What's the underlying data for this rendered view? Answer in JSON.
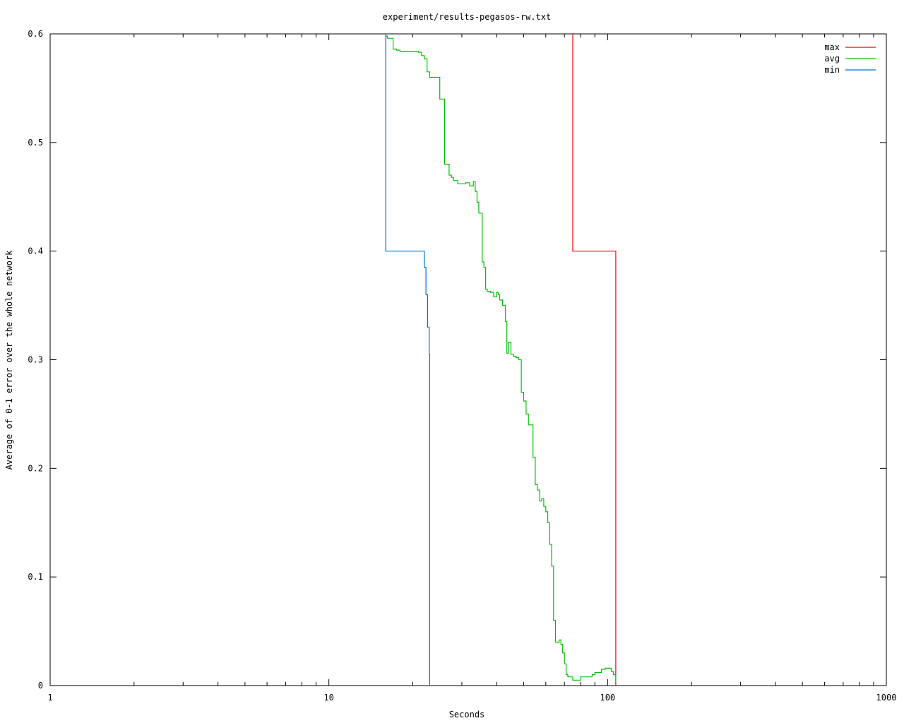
{
  "chart_data": {
    "type": "line",
    "title": "experiment/results-pegasos-rw.txt",
    "xlabel": "Seconds",
    "ylabel": "Average of 0-1 error over the whole network",
    "xscale": "log",
    "xlim": [
      1,
      1000
    ],
    "ylim": [
      0,
      0.6
    ],
    "xticks": [
      1,
      10,
      100,
      1000
    ],
    "xtick_labels": [
      "1",
      "10",
      "100",
      "1000"
    ],
    "yticks": [
      0,
      0.1,
      0.2,
      0.3,
      0.4,
      0.5,
      0.6
    ],
    "ytick_labels": [
      "0",
      "0.1",
      "0.2",
      "0.3",
      "0.4",
      "0.5",
      "0.6"
    ],
    "grid": false,
    "legend_position": "top-right",
    "series": [
      {
        "name": "max",
        "color": "#ff0000",
        "x": [
          75,
          75,
          107,
          107
        ],
        "y": [
          0.6,
          0.4,
          0.4,
          0.0
        ]
      },
      {
        "name": "avg",
        "color": "#00c000",
        "x": [
          16,
          16.2,
          17,
          17.5,
          18,
          19,
          21,
          21.5,
          22,
          22.5,
          23,
          24,
          25,
          26,
          26.5,
          27,
          27.5,
          28,
          29,
          30,
          31,
          32,
          33,
          33.5,
          34,
          34.5,
          35,
          35.5,
          36,
          36.5,
          37,
          38,
          39,
          40,
          40.5,
          41,
          42,
          43,
          43.5,
          44,
          45,
          46,
          47,
          48,
          49,
          50,
          51,
          52,
          53,
          54,
          55,
          56,
          57,
          58,
          59,
          60,
          61,
          62,
          63,
          64,
          65,
          66,
          67,
          68,
          69,
          70,
          71,
          72,
          73,
          75,
          78,
          80,
          82,
          85,
          88,
          90,
          95,
          98,
          100,
          103,
          105,
          107
        ],
        "y": [
          0.598,
          0.596,
          0.586,
          0.585,
          0.584,
          0.584,
          0.583,
          0.58,
          0.577,
          0.565,
          0.56,
          0.56,
          0.54,
          0.48,
          0.48,
          0.47,
          0.468,
          0.465,
          0.462,
          0.462,
          0.463,
          0.46,
          0.464,
          0.455,
          0.445,
          0.435,
          0.435,
          0.39,
          0.385,
          0.365,
          0.363,
          0.362,
          0.358,
          0.362,
          0.36,
          0.355,
          0.35,
          0.335,
          0.306,
          0.316,
          0.305,
          0.303,
          0.302,
          0.3,
          0.27,
          0.262,
          0.25,
          0.24,
          0.24,
          0.21,
          0.185,
          0.18,
          0.17,
          0.172,
          0.165,
          0.16,
          0.15,
          0.13,
          0.11,
          0.06,
          0.04,
          0.04,
          0.042,
          0.038,
          0.03,
          0.02,
          0.01,
          0.008,
          0.008,
          0.005,
          0.005,
          0.008,
          0.008,
          0.008,
          0.01,
          0.012,
          0.015,
          0.016,
          0.016,
          0.013,
          0.01,
          0.003
        ]
      },
      {
        "name": "min",
        "color": "#0070d0",
        "x": [
          16,
          16,
          21.8,
          22.0,
          22.3,
          22.6,
          22.9,
          23.0,
          23.0
        ],
        "y": [
          0.6,
          0.4,
          0.4,
          0.385,
          0.36,
          0.33,
          0.305,
          0.3,
          0.0
        ]
      }
    ]
  }
}
